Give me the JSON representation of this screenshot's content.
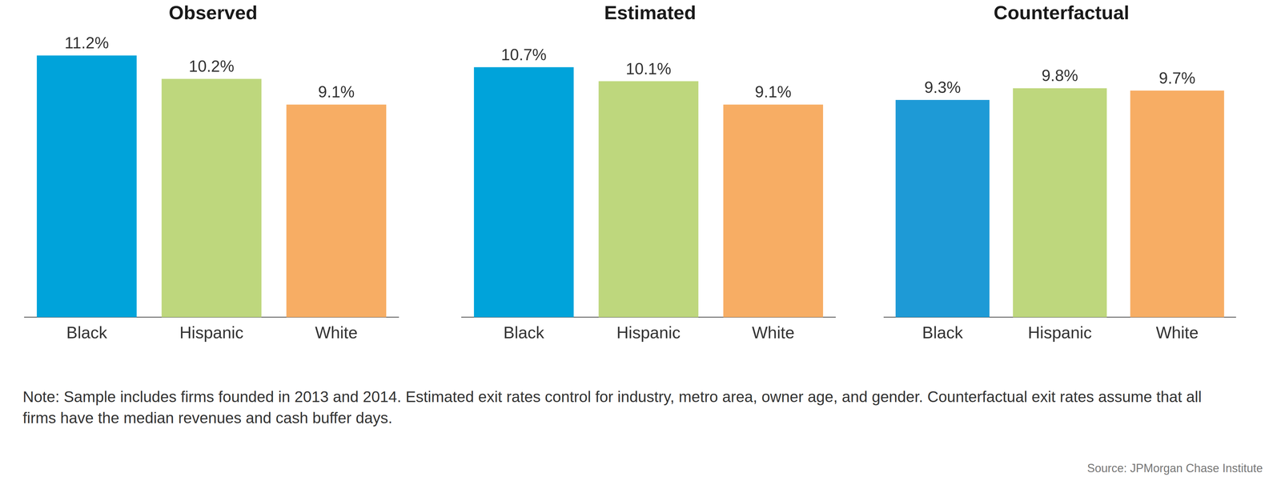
{
  "chart_data": [
    {
      "type": "bar",
      "title": "Observed",
      "categories": [
        "Black",
        "Hispanic",
        "White"
      ],
      "values": [
        11.2,
        10.2,
        9.1
      ],
      "value_labels": [
        "11.2%",
        "10.2%",
        "9.1%"
      ],
      "colors": [
        "#00a3da",
        "#bed77d",
        "#f7ad64"
      ],
      "ylim": [
        0,
        12
      ],
      "grid": false,
      "tick_labels": "x",
      "data_labels": true
    },
    {
      "type": "bar",
      "title": "Estimated",
      "categories": [
        "Black",
        "Hispanic",
        "White"
      ],
      "values": [
        10.7,
        10.1,
        9.1
      ],
      "value_labels": [
        "10.7%",
        "10.1%",
        "9.1%"
      ],
      "colors": [
        "#00a3da",
        "#bed77d",
        "#f7ad64"
      ],
      "ylim": [
        0,
        12
      ],
      "grid": false,
      "tick_labels": "x",
      "data_labels": true
    },
    {
      "type": "bar",
      "title": "Counterfactual",
      "categories": [
        "Black",
        "Hispanic",
        "White"
      ],
      "values": [
        9.3,
        9.8,
        9.7
      ],
      "value_labels": [
        "9.3%",
        "9.8%",
        "9.7%"
      ],
      "colors": [
        "#1e9ad6",
        "#bed77d",
        "#f7ad64"
      ],
      "ylim": [
        0,
        12
      ],
      "grid": false,
      "tick_labels": "x",
      "data_labels": true
    }
  ],
  "note": "Note: Sample includes firms founded in 2013 and 2014. Estimated exit rates control for industry, metro area, owner age, and gender. Counterfactual exit rates assume that all firms have the median revenues and cash buffer days.",
  "source": "Source: JPMorgan Chase Institute"
}
